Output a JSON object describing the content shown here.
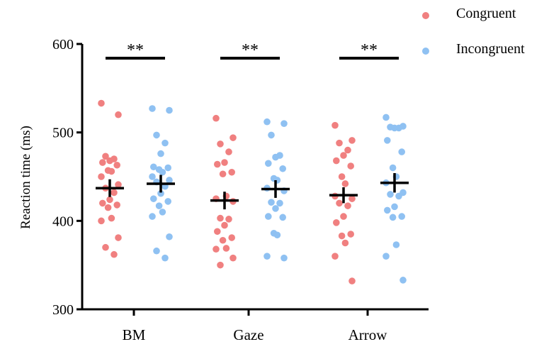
{
  "chart_data": {
    "type": "scatter",
    "ylabel": "Reaction time (ms)",
    "xlabel": "",
    "ylim": [
      300,
      600
    ],
    "yticks": [
      300,
      400,
      500,
      600
    ],
    "categories": [
      "BM",
      "Gaze",
      "Arrow"
    ],
    "legend_position": "top-right",
    "significance": [
      "**",
      "**",
      "**"
    ],
    "series": [
      {
        "name": "Congruent",
        "color": "#f08080",
        "means": [
          437,
          423,
          429
        ],
        "errors": [
          10,
          10,
          9
        ],
        "points": [
          [
            533,
            520,
            473,
            470,
            468,
            466,
            463,
            457,
            456,
            450,
            441,
            437,
            432,
            424,
            420,
            418,
            415,
            403,
            400,
            381,
            370,
            362
          ],
          [
            516,
            494,
            487,
            478,
            466,
            464,
            455,
            453,
            428,
            425,
            422,
            403,
            402,
            395,
            388,
            381,
            378,
            369,
            368,
            358,
            350
          ],
          [
            508,
            491,
            488,
            480,
            474,
            468,
            462,
            450,
            442,
            428,
            425,
            420,
            417,
            405,
            398,
            385,
            383,
            375,
            360,
            332
          ]
        ]
      },
      {
        "name": "Incongruent",
        "color": "#8fc1f2",
        "means": [
          442,
          436,
          443
        ],
        "errors": [
          10,
          10,
          11
        ],
        "points": [
          [
            527,
            525,
            497,
            488,
            476,
            461,
            460,
            458,
            455,
            450,
            446,
            444,
            439,
            431,
            425,
            422,
            417,
            410,
            405,
            382,
            366,
            358
          ],
          [
            512,
            510,
            497,
            474,
            472,
            465,
            459,
            448,
            446,
            437,
            434,
            421,
            420,
            414,
            405,
            404,
            386,
            384,
            360,
            358
          ],
          [
            517,
            507,
            506,
            505,
            505,
            491,
            478,
            460,
            450,
            443,
            432,
            430,
            428,
            416,
            412,
            405,
            404,
            373,
            360,
            333
          ]
        ]
      }
    ]
  }
}
